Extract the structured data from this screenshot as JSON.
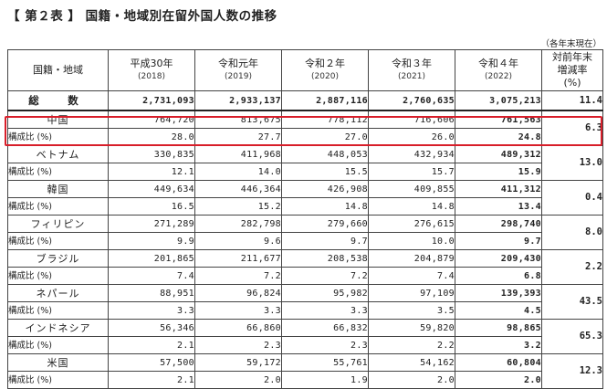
{
  "title": "【 第２表 】 国籍・地域別在留外国人数の推移",
  "note": "（各年末現在）",
  "header": {
    "region": "国籍・地域",
    "years": [
      {
        "era": "平成30年",
        "year": "(2018)"
      },
      {
        "era": "令和元年",
        "year": "(2019)"
      },
      {
        "era": "令和２年",
        "year": "(2020)"
      },
      {
        "era": "令和３年",
        "year": "(2021)"
      },
      {
        "era": "令和４年",
        "year": "(2022)"
      }
    ],
    "rate_lines": [
      "対前年末",
      "増減率",
      "(%)"
    ]
  },
  "total": {
    "label": "総　数",
    "values": [
      "2,731,093",
      "2,933,137",
      "2,887,116",
      "2,760,635",
      "3,075,213"
    ],
    "rate": "11.4"
  },
  "sub_label": "構成比 (%)",
  "rows": [
    {
      "name": "中国",
      "values": [
        "764,720",
        "813,675",
        "778,112",
        "716,606",
        "761,563"
      ],
      "shares": [
        "28.0",
        "27.7",
        "27.0",
        "26.0",
        "24.8"
      ],
      "rate": "6.3"
    },
    {
      "name": "ベトナム",
      "values": [
        "330,835",
        "411,968",
        "448,053",
        "432,934",
        "489,312"
      ],
      "shares": [
        "12.1",
        "14.0",
        "15.5",
        "15.7",
        "15.9"
      ],
      "rate": "13.0"
    },
    {
      "name": "韓国",
      "values": [
        "449,634",
        "446,364",
        "426,908",
        "409,855",
        "411,312"
      ],
      "shares": [
        "16.5",
        "15.2",
        "14.8",
        "14.8",
        "13.4"
      ],
      "rate": "0.4"
    },
    {
      "name": "フィリピン",
      "values": [
        "271,289",
        "282,798",
        "279,660",
        "276,615",
        "298,740"
      ],
      "shares": [
        "9.9",
        "9.6",
        "9.7",
        "10.0",
        "9.7"
      ],
      "rate": "8.0"
    },
    {
      "name": "ブラジル",
      "values": [
        "201,865",
        "211,677",
        "208,538",
        "204,879",
        "209,430"
      ],
      "shares": [
        "7.4",
        "7.2",
        "7.2",
        "7.4",
        "6.8"
      ],
      "rate": "2.2"
    },
    {
      "name": "ネパール",
      "values": [
        "88,951",
        "96,824",
        "95,982",
        "97,109",
        "139,393"
      ],
      "shares": [
        "3.3",
        "3.3",
        "3.3",
        "3.5",
        "4.5"
      ],
      "rate": "43.5"
    },
    {
      "name": "インドネシア",
      "values": [
        "56,346",
        "66,860",
        "66,832",
        "59,820",
        "98,865"
      ],
      "shares": [
        "2.1",
        "2.3",
        "2.3",
        "2.2",
        "3.2"
      ],
      "rate": "65.3"
    },
    {
      "name": "米国",
      "values": [
        "57,500",
        "59,172",
        "55,761",
        "54,162",
        "60,804"
      ],
      "shares": [
        "2.1",
        "2.0",
        "1.9",
        "2.0",
        "2.0"
      ],
      "rate": "12.3"
    }
  ],
  "colors": {
    "highlight": "#d81e2a",
    "text": "#222222",
    "border": "#444444"
  }
}
